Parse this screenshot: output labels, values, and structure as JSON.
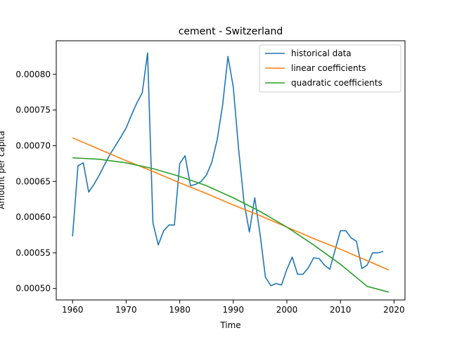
{
  "chart_data": {
    "type": "line",
    "title": "cement - Switzerland",
    "xlabel": "Time",
    "ylabel": "Amount per capita",
    "xlim": [
      1956.95,
      2022.05
    ],
    "ylim": [
      0.000484,
      0.000847
    ],
    "x_ticks": [
      1960,
      1970,
      1980,
      1990,
      2000,
      2010,
      2020
    ],
    "x_tick_labels": [
      "1960",
      "1970",
      "1980",
      "1990",
      "2000",
      "2010",
      "2020"
    ],
    "y_ticks": [
      0.0005,
      0.00055,
      0.0006,
      0.00065,
      0.0007,
      0.00075,
      0.0008
    ],
    "y_tick_labels": [
      "0.00050",
      "0.00055",
      "0.00060",
      "0.00065",
      "0.00070",
      "0.00075",
      "0.00080"
    ],
    "grid": false,
    "legend_position": "top-right",
    "series": [
      {
        "name": "historical data",
        "color": "#1f77b4",
        "x": [
          1960,
          1961,
          1962,
          1963,
          1964,
          1965,
          1966,
          1967,
          1968,
          1969,
          1970,
          1971,
          1972,
          1973,
          1974,
          1975,
          1976,
          1977,
          1978,
          1979,
          1980,
          1981,
          1982,
          1983,
          1984,
          1985,
          1986,
          1987,
          1988,
          1989,
          1990,
          1991,
          1992,
          1993,
          1994,
          1995,
          1996,
          1997,
          1998,
          1999,
          2000,
          2001,
          2002,
          2003,
          2004,
          2005,
          2006,
          2007,
          2008,
          2009,
          2010,
          2011,
          2012,
          2013,
          2014,
          2015,
          2016,
          2017,
          2018
        ],
        "y": [
          0.000573,
          0.000672,
          0.000676,
          0.000635,
          0.000646,
          0.000659,
          0.000674,
          0.000688,
          0.0007,
          0.000712,
          0.000725,
          0.000743,
          0.00076,
          0.000774,
          0.00083,
          0.000592,
          0.000561,
          0.000581,
          0.000589,
          0.000589,
          0.000675,
          0.000686,
          0.000644,
          0.000646,
          0.00065,
          0.000659,
          0.000677,
          0.000709,
          0.000757,
          0.000825,
          0.000782,
          0.000695,
          0.000621,
          0.000579,
          0.000627,
          0.000576,
          0.000516,
          0.000504,
          0.000507,
          0.000505,
          0.000527,
          0.000544,
          0.00052,
          0.00052,
          0.000529,
          0.000543,
          0.000542,
          0.000533,
          0.000527,
          0.000554,
          0.000581,
          0.000581,
          0.000571,
          0.000566,
          0.000528,
          0.000533,
          0.00055,
          0.00055,
          0.000552
        ]
      },
      {
        "name": "linear coefficients",
        "color": "#ff7f0e",
        "x": [
          1960,
          1965,
          1970,
          1975,
          1980,
          1985,
          1990,
          1995,
          2000,
          2005,
          2010,
          2015,
          2019
        ],
        "y": [
          0.000711,
          0.000695,
          0.000679,
          0.000664,
          0.000648,
          0.000633,
          0.000617,
          0.000602,
          0.000586,
          0.00057,
          0.000555,
          0.000539,
          0.000526
        ]
      },
      {
        "name": "quadratic coefficients",
        "color": "#2ca02c",
        "x": [
          1960,
          1965,
          1970,
          1975,
          1980,
          1985,
          1990,
          1995,
          2000,
          2005,
          2010,
          2015,
          2019
        ],
        "y": [
          0.000683,
          0.000681,
          0.000676,
          0.000668,
          0.000657,
          0.000644,
          0.000627,
          0.000608,
          0.000586,
          0.000561,
          0.000534,
          0.000503,
          0.000495
        ]
      }
    ]
  }
}
